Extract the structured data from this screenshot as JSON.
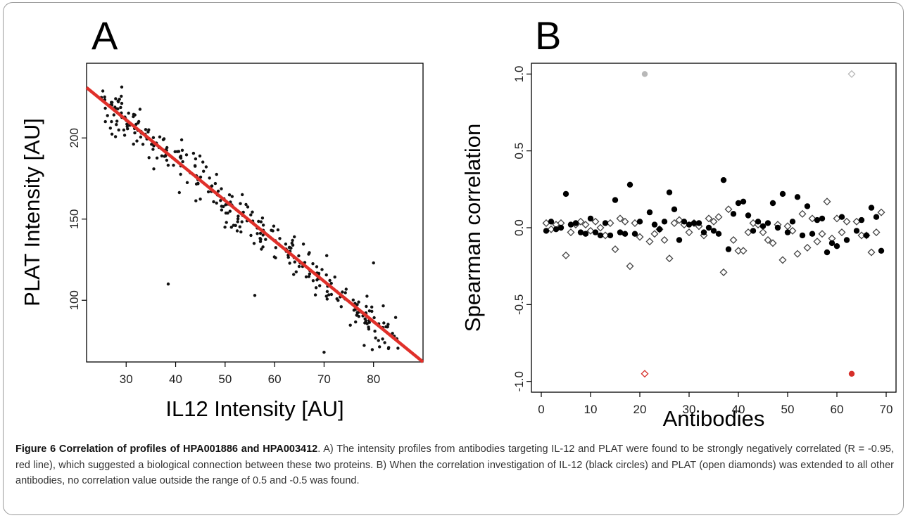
{
  "chart_data": [
    {
      "panel": "A",
      "type": "scatter",
      "xlabel": "IL12 Intensity [AU]",
      "ylabel": "PLAT  Intensity [AU]",
      "xlim": [
        22,
        90
      ],
      "ylim": [
        62,
        246
      ],
      "xticks": [
        30,
        40,
        50,
        60,
        70,
        80
      ],
      "yticks": [
        100,
        150,
        200
      ],
      "fit_line": {
        "color": "#e0302a",
        "x": [
          22,
          90
        ],
        "y": [
          231,
          62
        ]
      },
      "point_color": "#111111"
    },
    {
      "panel": "B",
      "type": "scatter",
      "xlabel": "Antibodies",
      "ylabel": "Spearman correlation",
      "xlim": [
        -2,
        72
      ],
      "ylim": [
        -1.07,
        1.07
      ],
      "xticks": [
        0,
        10,
        20,
        30,
        40,
        50,
        60,
        70
      ],
      "yticks": [
        -1.0,
        -0.5,
        0.0,
        0.5,
        1.0
      ],
      "ytick_labels": [
        "-1.0",
        "-0.5",
        "0.0",
        "0.5",
        "1.0"
      ],
      "series": [
        {
          "marker": "filled-circle",
          "x": [
            1,
            2,
            3,
            4,
            5,
            6,
            7,
            8,
            9,
            10,
            11,
            12,
            13,
            14,
            15,
            16,
            17,
            18,
            19,
            20,
            22,
            23,
            24,
            25,
            26,
            27,
            28,
            29,
            30,
            31,
            32,
            33,
            34,
            35,
            36,
            37,
            38,
            39,
            40,
            41,
            42,
            43,
            44,
            45,
            46,
            47,
            48,
            49,
            50,
            51,
            52,
            53,
            54,
            55,
            56,
            57,
            58,
            59,
            60,
            61,
            62,
            64,
            65,
            66,
            67,
            68,
            69
          ],
          "y": [
            -0.02,
            0.04,
            -0.01,
            0.0,
            0.22,
            0.02,
            0.03,
            -0.03,
            -0.04,
            0.06,
            -0.03,
            -0.05,
            0.03,
            -0.05,
            0.18,
            -0.03,
            -0.04,
            0.28,
            -0.04,
            0.04,
            0.1,
            0.02,
            -0.01,
            0.04,
            0.23,
            0.12,
            -0.08,
            0.04,
            0.02,
            0.03,
            0.03,
            -0.03,
            0.0,
            -0.02,
            -0.04,
            0.31,
            -0.14,
            0.09,
            0.16,
            0.17,
            0.08,
            -0.02,
            0.04,
            0.01,
            0.03,
            0.16,
            0.0,
            0.22,
            -0.03,
            0.04,
            0.2,
            -0.05,
            0.14,
            -0.04,
            0.05,
            0.06,
            -0.16,
            -0.1,
            -0.12,
            0.07,
            -0.08,
            -0.02,
            0.05,
            -0.05,
            0.13,
            0.07,
            -0.15
          ],
          "highlight": {
            "x": 63,
            "y": -0.95,
            "color": "#d62f2a"
          }
        },
        {
          "marker": "open-diamond",
          "x": [
            1,
            2,
            3,
            4,
            5,
            6,
            7,
            8,
            9,
            10,
            11,
            12,
            13,
            14,
            15,
            16,
            17,
            18,
            19,
            20,
            22,
            23,
            24,
            25,
            26,
            27,
            28,
            29,
            30,
            31,
            32,
            33,
            34,
            35,
            36,
            37,
            38,
            39,
            40,
            41,
            42,
            43,
            44,
            45,
            46,
            47,
            48,
            49,
            50,
            51,
            52,
            53,
            54,
            55,
            56,
            57,
            58,
            59,
            60,
            61,
            62,
            64,
            65,
            66,
            67,
            68,
            69
          ],
          "y": [
            0.03,
            -0.01,
            0.02,
            0.03,
            -0.18,
            -0.03,
            0.02,
            0.04,
            0.02,
            -0.02,
            0.04,
            0.0,
            -0.05,
            0.03,
            -0.14,
            0.06,
            0.04,
            -0.25,
            0.03,
            -0.06,
            -0.09,
            -0.04,
            -0.01,
            -0.08,
            -0.2,
            0.03,
            0.05,
            0.02,
            -0.03,
            0.03,
            0.01,
            -0.05,
            0.06,
            0.04,
            0.07,
            -0.29,
            0.12,
            -0.08,
            -0.15,
            -0.15,
            -0.03,
            0.03,
            0.02,
            -0.03,
            -0.08,
            -0.1,
            0.02,
            -0.21,
            0.01,
            -0.02,
            -0.17,
            0.09,
            -0.13,
            0.06,
            -0.09,
            -0.04,
            0.17,
            -0.07,
            0.06,
            -0.03,
            0.04,
            0.04,
            -0.05,
            -0.05,
            -0.16,
            -0.03,
            0.1
          ],
          "highlight": {
            "x": 21,
            "y": -0.95,
            "color": "#d62f2a"
          }
        }
      ],
      "gray_points": [
        {
          "x": 21,
          "y": 1.0,
          "marker": "filled-circle",
          "color": "#b8b8b8"
        },
        {
          "x": 63,
          "y": 1.0,
          "marker": "open-diamond",
          "color": "#b8b8b8"
        }
      ]
    }
  ],
  "panels": {
    "a_letter": "A",
    "b_letter": "B"
  },
  "caption": {
    "title": "Figure 6 Correlation of profiles of HPA001886 and HPA003412",
    "text": ". A) The intensity profiles from antibodies targeting IL-12 and PLAT were found to be strongly negatively correlated (R = -0.95, red line), which suggested a biological connection between these two proteins. B) When the correlation investigation of IL-12 (black circles) and PLAT (open diamonds) was extended to all other antibodies, no correlation value outside the range of 0.5 and -0.5 was found."
  }
}
